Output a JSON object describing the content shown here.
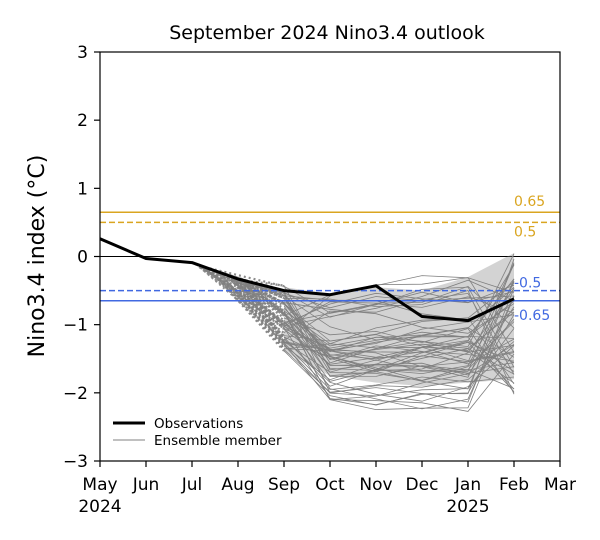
{
  "chart_data": {
    "type": "line",
    "title": "September 2024 Nino3.4 outlook",
    "xlabel": "",
    "ylabel": "Nino3.4 index (°C)",
    "ylim": [
      -3,
      3
    ],
    "xlim": [
      0,
      10
    ],
    "x_ticks": [
      {
        "x": 0,
        "label": "May",
        "year": "2024"
      },
      {
        "x": 1,
        "label": "Jun",
        "year": ""
      },
      {
        "x": 2,
        "label": "Jul",
        "year": ""
      },
      {
        "x": 3,
        "label": "Aug",
        "year": ""
      },
      {
        "x": 4,
        "label": "Sep",
        "year": ""
      },
      {
        "x": 5,
        "label": "Oct",
        "year": ""
      },
      {
        "x": 6,
        "label": "Nov",
        "year": ""
      },
      {
        "x": 7,
        "label": "Dec",
        "year": ""
      },
      {
        "x": 8,
        "label": "Jan",
        "year": "2025"
      },
      {
        "x": 9,
        "label": "Feb",
        "year": ""
      },
      {
        "x": 10,
        "label": "Mar",
        "year": ""
      }
    ],
    "y_ticks": [
      {
        "v": 3,
        "label": "3"
      },
      {
        "v": 2,
        "label": "2"
      },
      {
        "v": 1,
        "label": "1"
      },
      {
        "v": 0,
        "label": "0"
      },
      {
        "v": -1,
        "label": "−1"
      },
      {
        "v": -2,
        "label": "−2"
      },
      {
        "v": -3,
        "label": "−3"
      }
    ],
    "observations": {
      "name": "Observations",
      "x": [
        0,
        1,
        2,
        3,
        4,
        5,
        6,
        7,
        8,
        9
      ],
      "values": [
        0.26,
        -0.03,
        -0.09,
        -0.33,
        -0.5,
        -0.56,
        -0.43,
        -0.88,
        -0.94,
        -0.62
      ]
    },
    "ensemble": {
      "name": "Ensemble member",
      "count": 60,
      "x": [
        4,
        5,
        6,
        7,
        8,
        9
      ],
      "sep_range": [
        -1.4,
        -0.45
      ],
      "oct_range": [
        -2.15,
        -0.55
      ],
      "end_range": [
        -2.05,
        0.05
      ],
      "color": "#808080"
    },
    "thresholds": [
      {
        "value": 0.65,
        "label": "0.65",
        "style": "solid",
        "color": "#DAA520"
      },
      {
        "value": 0.5,
        "label": "0.5",
        "style": "dashed",
        "color": "#DAA520"
      },
      {
        "value": -0.5,
        "label": "-0.5",
        "style": "dashed",
        "color": "#4169E1"
      },
      {
        "value": -0.65,
        "label": "-0.65",
        "style": "solid",
        "color": "#4169E1"
      }
    ],
    "zero_line": true,
    "legend": {
      "position": "lower-left",
      "entries": [
        {
          "label": "Observations",
          "style": "thick-black"
        },
        {
          "label": "Ensemble member",
          "style": "thin-gray"
        }
      ]
    }
  }
}
